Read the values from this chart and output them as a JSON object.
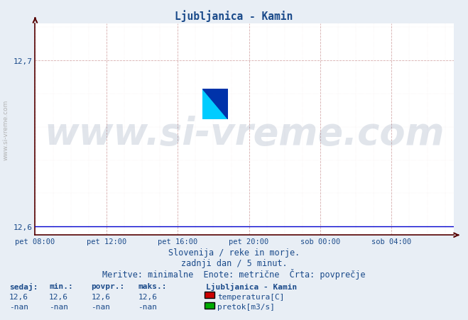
{
  "title": "Ljubljanica - Kamin",
  "title_color": "#1a4a8a",
  "bg_color": "#e8eef5",
  "plot_bg_color": "#ffffff",
  "grid_color_major": "#cc9999",
  "grid_color_minor": "#e8cccc",
  "x_labels": [
    "pet 08:00",
    "pet 12:00",
    "pet 16:00",
    "pet 20:00",
    "sob 00:00",
    "sob 04:00"
  ],
  "x_ticks": [
    0,
    4,
    8,
    12,
    16,
    20
  ],
  "x_max": 23.5,
  "y_min": 12.6,
  "y_max": 12.7,
  "y_ticks": [
    12.6,
    12.7
  ],
  "tick_label_color": "#1a4a8a",
  "axis_color": "#550000",
  "line_color": "#0000cc",
  "watermark_text": "www.si-vreme.com",
  "watermark_color": "#1a3a6b",
  "watermark_alpha": 0.13,
  "watermark_fontsize": 38,
  "footer_line1": "Slovenija / reke in morje.",
  "footer_line2": "zadnji dan / 5 minut.",
  "footer_line3": "Meritve: minimalne  Enote: metrične  Črta: povprečje",
  "footer_color": "#1a4a8a",
  "footer_fontsize": 8.5,
  "legend_title": "Ljubljanica - Kamin",
  "legend_entries": [
    {
      "label": "temperatura[C]",
      "color": "#cc0000"
    },
    {
      "label": "pretok[m3/s]",
      "color": "#00aa00"
    }
  ],
  "stats_headers": [
    "sedaj:",
    "min.:",
    "povpr.:",
    "maks.:"
  ],
  "stats_temp": [
    "12,6",
    "12,6",
    "12,6",
    "12,6"
  ],
  "stats_pretok": [
    "-nan",
    "-nan",
    "-nan",
    "-nan"
  ],
  "stats_color": "#1a4a8a",
  "constant_value": 12.6,
  "n_points": 288,
  "left_watermark": "www.si-vreme.com",
  "left_watermark_color": "#aaaaaa",
  "logo_colors": {
    "yellow": "#ffee00",
    "cyan": "#00ccff",
    "dark_blue": "#0033aa",
    "mid_blue": "#0055cc"
  }
}
